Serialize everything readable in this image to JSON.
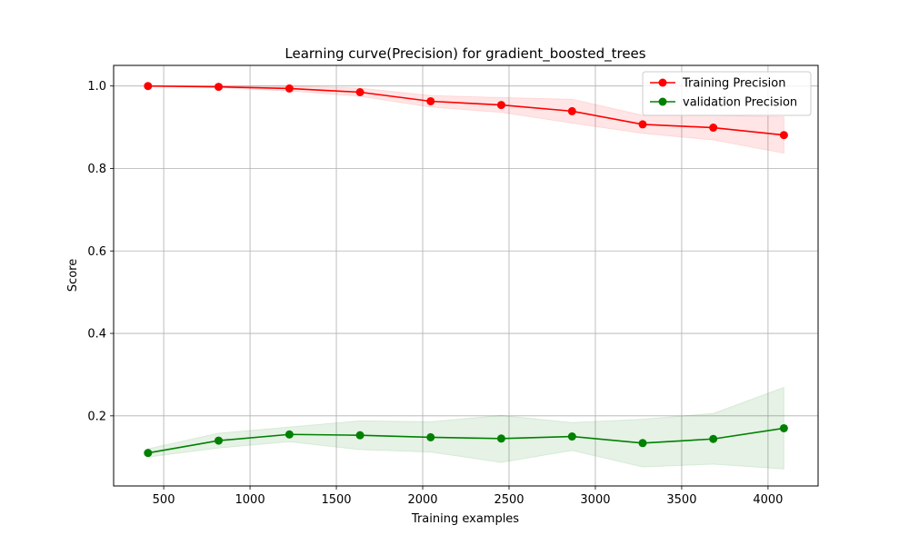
{
  "chart_data": {
    "type": "line",
    "title": "Learning curve(Precision) for gradient_boosted_trees",
    "xlabel": "Training examples",
    "ylabel": "Score",
    "xlim": [
      210,
      4290
    ],
    "ylim": [
      0.03,
      1.05
    ],
    "xticks": [
      500,
      1000,
      1500,
      2000,
      2500,
      3000,
      3500,
      4000
    ],
    "xtick_labels": [
      "500",
      "1000",
      "1500",
      "2000",
      "2500",
      "3000",
      "3500",
      "4000"
    ],
    "yticks": [
      0.2,
      0.4,
      0.6,
      0.8,
      1.0
    ],
    "ytick_labels": [
      "0.2",
      "0.4",
      "0.6",
      "0.8",
      "1.0"
    ],
    "grid": true,
    "legend_position": "top-right",
    "x": [
      409,
      818,
      1228,
      1637,
      2046,
      2455,
      2865,
      3274,
      3683,
      4092
    ],
    "series": [
      {
        "name": "Training Precision",
        "color": "#ff0000",
        "band_color": "#ff0000",
        "values": [
          1.0,
          0.998,
          0.994,
          0.985,
          0.963,
          0.954,
          0.939,
          0.907,
          0.899,
          0.881
        ],
        "upper": [
          1.0,
          1.0,
          1.0,
          0.995,
          0.977,
          0.972,
          0.968,
          0.929,
          0.929,
          0.925
        ],
        "lower": [
          1.0,
          0.996,
          0.988,
          0.975,
          0.949,
          0.936,
          0.91,
          0.885,
          0.869,
          0.837
        ]
      },
      {
        "name": "validation Precision",
        "color": "#008000",
        "band_color": "#008000",
        "values": [
          0.11,
          0.14,
          0.155,
          0.153,
          0.148,
          0.145,
          0.15,
          0.134,
          0.144,
          0.17
        ],
        "upper": [
          0.12,
          0.158,
          0.173,
          0.188,
          0.186,
          0.201,
          0.184,
          0.192,
          0.206,
          0.269
        ],
        "lower": [
          0.1,
          0.122,
          0.137,
          0.118,
          0.112,
          0.087,
          0.116,
          0.076,
          0.083,
          0.071
        ]
      }
    ]
  }
}
